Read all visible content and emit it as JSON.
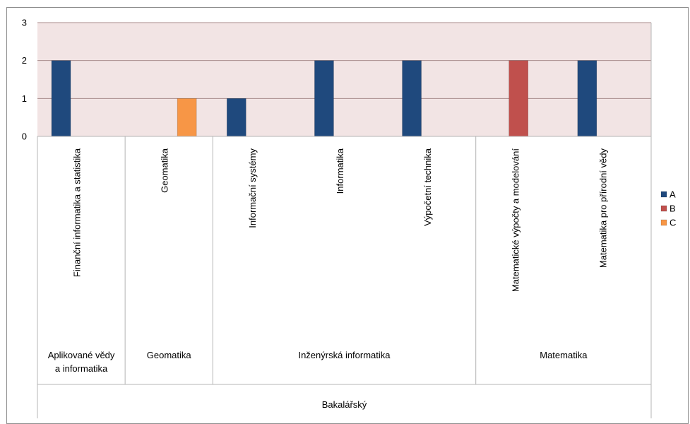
{
  "chart_data": {
    "type": "bar",
    "title": "",
    "xlabel": "",
    "ylabel": "",
    "ylim": [
      0,
      3
    ],
    "yticks": [
      0,
      1,
      2,
      3
    ],
    "grid": true,
    "legend_position": "right",
    "categories": [
      "Finanční informatika a statistika",
      "Geomatika",
      "Informační systémy",
      "Informatika",
      "Výpočetní technika",
      "Matematické výpočty a modelování",
      "Matematika pro přírodní vědy"
    ],
    "groups": [
      {
        "label": "Aplikované vědy a informatika",
        "lines": [
          "Aplikované vědy",
          "a informatika"
        ],
        "span": [
          0,
          1
        ]
      },
      {
        "label": "Geomatika",
        "lines": [
          "Geomatika"
        ],
        "span": [
          1,
          2
        ]
      },
      {
        "label": "Inženýrská informatika",
        "lines": [
          "Inženýrská informatika"
        ],
        "span": [
          2,
          5
        ]
      },
      {
        "label": "Matematika",
        "lines": [
          "Matematika"
        ],
        "span": [
          5,
          7
        ]
      }
    ],
    "top_group": {
      "label": "Bakalářský",
      "span": [
        0,
        7
      ]
    },
    "series": [
      {
        "name": "A",
        "color": "#1F497D",
        "values": [
          2,
          0,
          1,
          2,
          2,
          0,
          2
        ]
      },
      {
        "name": "B",
        "color": "#C0504D",
        "values": [
          0,
          0,
          0,
          0,
          0,
          2,
          0
        ]
      },
      {
        "name": "C",
        "color": "#F79646",
        "values": [
          0,
          1,
          0,
          0,
          0,
          0,
          0
        ]
      }
    ],
    "colors": {
      "plot_background": "#F2E4E4",
      "gridline": "#A98E8E",
      "axis": "#8c8c8c"
    }
  }
}
